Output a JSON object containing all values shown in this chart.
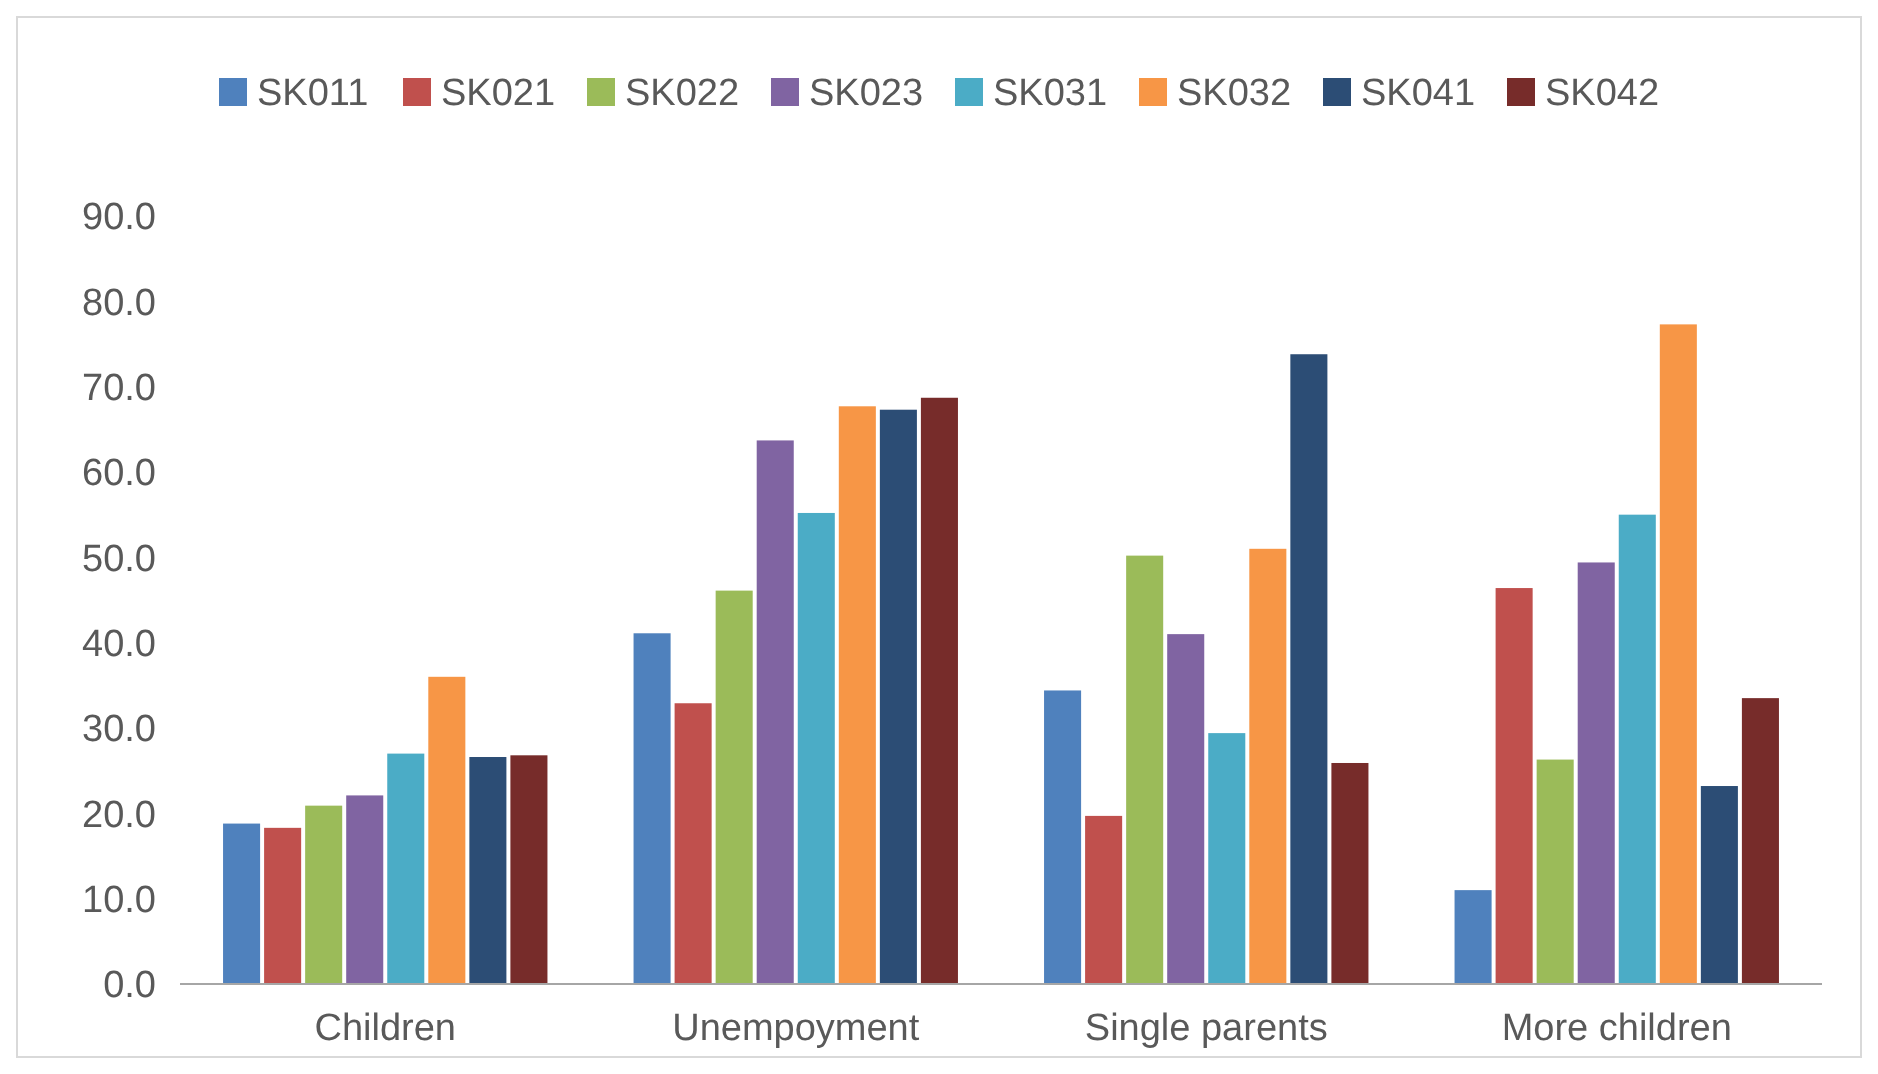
{
  "chart_data": {
    "type": "bar",
    "categories": [
      "Children",
      "Unempoyment",
      "Single parents",
      "More children"
    ],
    "series": [
      {
        "name": "SK011",
        "color": "#4f81bd",
        "values": [
          18.8,
          41.1,
          34.4,
          11.0
        ]
      },
      {
        "name": "SK021",
        "color": "#c0504d",
        "values": [
          18.3,
          32.9,
          19.7,
          46.4
        ]
      },
      {
        "name": "SK022",
        "color": "#9bbb59",
        "values": [
          20.9,
          46.1,
          50.2,
          26.3
        ]
      },
      {
        "name": "SK023",
        "color": "#8064a2",
        "values": [
          22.1,
          63.7,
          41.0,
          49.4
        ]
      },
      {
        "name": "SK031",
        "color": "#4bacc6",
        "values": [
          27.0,
          55.2,
          29.4,
          55.0
        ]
      },
      {
        "name": "SK032",
        "color": "#f79646",
        "values": [
          36.0,
          67.7,
          51.0,
          77.3
        ]
      },
      {
        "name": "SK041",
        "color": "#2c4d75",
        "values": [
          26.6,
          67.3,
          73.8,
          23.2
        ]
      },
      {
        "name": "SK042",
        "color": "#772c2a",
        "values": [
          26.8,
          68.7,
          25.9,
          33.5
        ]
      }
    ],
    "ylim": [
      0,
      90
    ],
    "yticks": [
      {
        "value": 0,
        "label": "0.0"
      },
      {
        "value": 10,
        "label": "10.0"
      },
      {
        "value": 20,
        "label": "20.0"
      },
      {
        "value": 30,
        "label": "30.0"
      },
      {
        "value": 40,
        "label": "40.0"
      },
      {
        "value": 50,
        "label": "50.0"
      },
      {
        "value": 60,
        "label": "60.0"
      },
      {
        "value": 70,
        "label": "70.0"
      },
      {
        "value": 80,
        "label": "80.0"
      },
      {
        "value": 90,
        "label": "90.0"
      }
    ],
    "grid": false,
    "legend": "top"
  }
}
